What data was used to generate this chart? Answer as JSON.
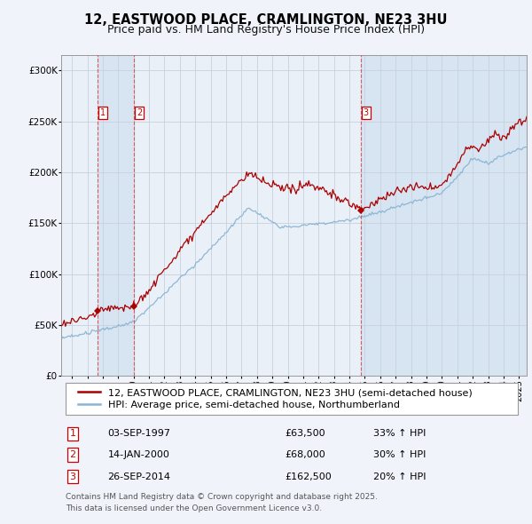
{
  "title": "12, EASTWOOD PLACE, CRAMLINGTON, NE23 3HU",
  "subtitle": "Price paid vs. HM Land Registry's House Price Index (HPI)",
  "ylabel_ticks": [
    "£0",
    "£50K",
    "£100K",
    "£150K",
    "£200K",
    "£250K",
    "£300K"
  ],
  "ytick_vals": [
    0,
    50000,
    100000,
    150000,
    200000,
    250000,
    300000
  ],
  "ylim": [
    0,
    315000
  ],
  "xlim_start": 1995.3,
  "xlim_end": 2025.5,
  "background_color": "#f0f4fa",
  "plot_bg_color": "#eaf0f8",
  "grid_color": "#c8d0dc",
  "sale_color": "#aa0000",
  "hpi_color": "#8ab4d4",
  "dashed_line_color": "#dd4444",
  "shade_color": "#d0dff0",
  "transactions": [
    {
      "num": 1,
      "date_num": 1997.67,
      "price": 63500,
      "label": "1"
    },
    {
      "num": 2,
      "date_num": 2000.04,
      "price": 68000,
      "label": "2"
    },
    {
      "num": 3,
      "date_num": 2014.74,
      "price": 162500,
      "label": "3"
    }
  ],
  "legend_sale_label": "12, EASTWOOD PLACE, CRAMLINGTON, NE23 3HU (semi-detached house)",
  "legend_hpi_label": "HPI: Average price, semi-detached house, Northumberland",
  "table_rows": [
    {
      "num": "1",
      "date": "03-SEP-1997",
      "price": "£63,500",
      "change": "33% ↑ HPI"
    },
    {
      "num": "2",
      "date": "14-JAN-2000",
      "price": "£68,000",
      "change": "30% ↑ HPI"
    },
    {
      "num": "3",
      "date": "26-SEP-2014",
      "price": "£162,500",
      "change": "20% ↑ HPI"
    }
  ],
  "footer": "Contains HM Land Registry data © Crown copyright and database right 2025.\nThis data is licensed under the Open Government Licence v3.0.",
  "title_fontsize": 10.5,
  "subtitle_fontsize": 9,
  "tick_fontsize": 7.5,
  "legend_fontsize": 8,
  "table_fontsize": 8.5,
  "footer_fontsize": 6.5
}
